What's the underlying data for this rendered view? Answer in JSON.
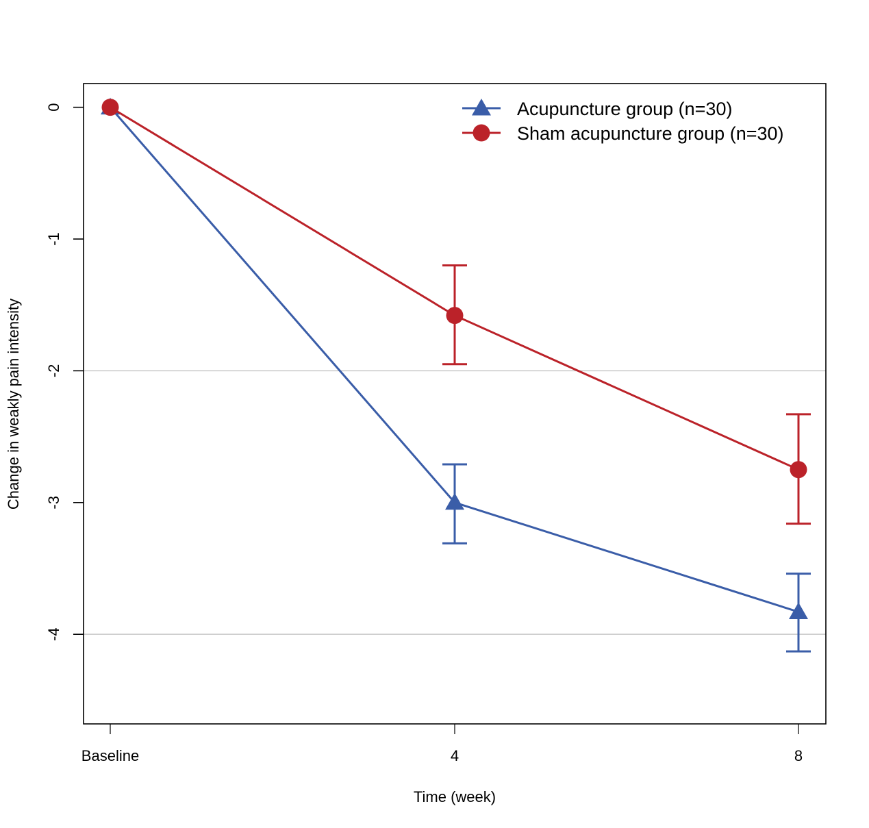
{
  "chart_data": {
    "type": "line",
    "title": "",
    "xlabel": "Time (week)",
    "ylabel": "Change in weakly pain intensity",
    "categories": [
      "Baseline",
      "4",
      "8"
    ],
    "ylim": [
      -4.68,
      0.18
    ],
    "yticks": [
      0,
      -1,
      -2,
      -3,
      -4
    ],
    "ytick_labels": [
      "0",
      "-1",
      "-2",
      "-3",
      "-4"
    ],
    "gridlines_y": [
      -2,
      -4
    ],
    "legend_position": "top-right",
    "series": [
      {
        "name": "Acupuncture group (n=30)",
        "color": "#3A5DA8",
        "marker": "triangle",
        "values": [
          0,
          -3.0,
          -3.83
        ],
        "error_upper": [
          null,
          -2.71,
          -3.54
        ],
        "error_lower": [
          null,
          -3.31,
          -4.13
        ]
      },
      {
        "name": "Sham acupuncture group (n=30)",
        "color": "#BB2229",
        "marker": "circle",
        "values": [
          0,
          -1.58,
          -2.75
        ],
        "error_upper": [
          null,
          -1.2,
          -2.33
        ],
        "error_lower": [
          null,
          -1.95,
          -3.16
        ]
      }
    ]
  }
}
